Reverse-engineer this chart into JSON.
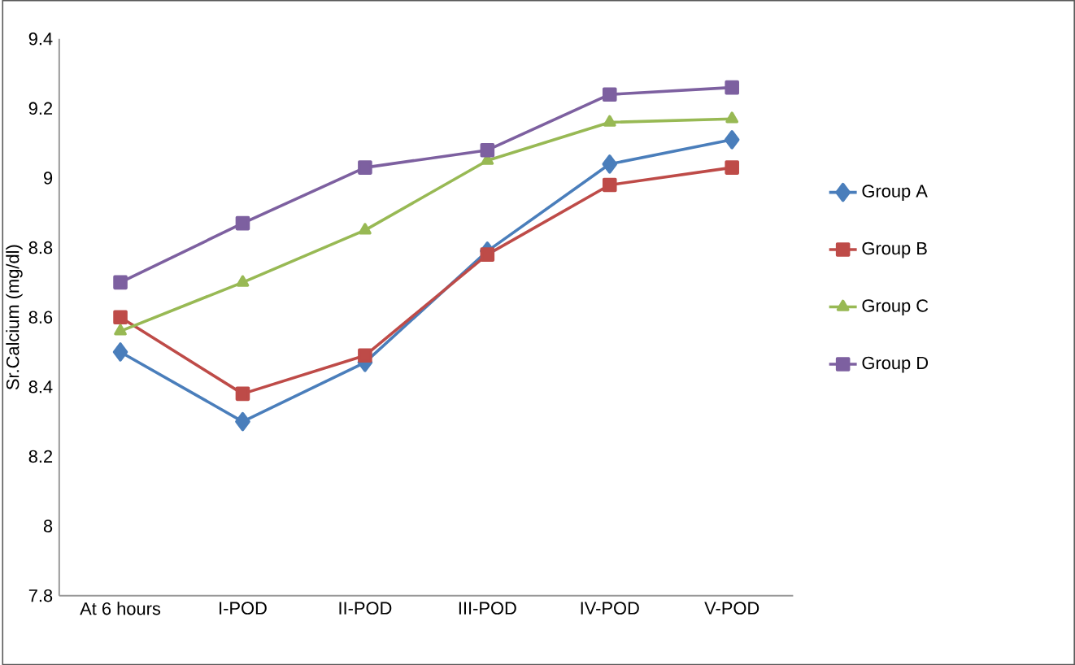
{
  "chart_data": {
    "type": "line",
    "ylabel": "Sr.Calcium (mg/dl)",
    "categories": [
      "At 6 hours",
      "I-POD",
      "II-POD",
      "III-POD",
      "IV-POD",
      "V-POD"
    ],
    "series": [
      {
        "name": "Group A",
        "color": "#4a7ebb",
        "marker": "diamond",
        "values": [
          8.5,
          8.3,
          8.47,
          8.79,
          9.04,
          9.11
        ]
      },
      {
        "name": "Group B",
        "color": "#be4b48",
        "marker": "square",
        "values": [
          8.6,
          8.38,
          8.49,
          8.78,
          8.98,
          9.03
        ]
      },
      {
        "name": "Group C",
        "color": "#98b954",
        "marker": "triangle",
        "values": [
          8.56,
          8.7,
          8.85,
          9.05,
          9.16,
          9.17
        ]
      },
      {
        "name": "Group D",
        "color": "#7d60a0",
        "marker": "square",
        "values": [
          8.7,
          8.87,
          9.03,
          9.08,
          9.24,
          9.26
        ]
      }
    ],
    "ylim": [
      7.8,
      9.4
    ],
    "yticks": [
      7.8,
      8,
      8.2,
      8.4,
      8.6,
      8.8,
      9,
      9.2,
      9.4
    ],
    "grid": false,
    "legend": "right",
    "line_style": "solid"
  }
}
